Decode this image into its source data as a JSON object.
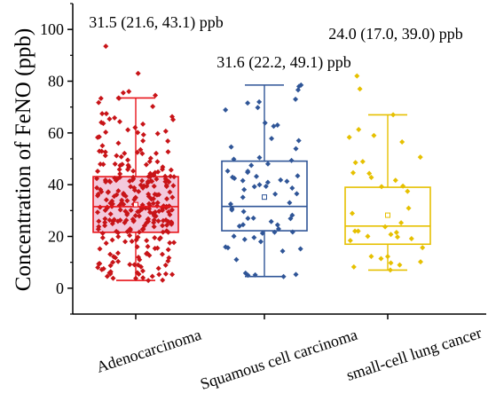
{
  "chart_data": {
    "type": "box",
    "title": "",
    "ylabel": "Concentration of FeNO (ppb)",
    "xlabel": "",
    "ylim": [
      -10,
      110
    ],
    "yticks": [
      0,
      20,
      40,
      60,
      80,
      100
    ],
    "grid": false,
    "categories": [
      "Adenocarcinoma",
      "Squamous cell carcinoma",
      "small-cell lung cancer"
    ],
    "series": [
      {
        "color": "#e8141a",
        "box_fill": "#f3c9dc",
        "point_color": "#c81418",
        "summary": "31.5 (21.6, 43.1) ppb",
        "median": 31.5,
        "q1": 21.6,
        "q3": 43.1,
        "mean": 32.3,
        "whisker_low": 3,
        "whisker_high": 73.5,
        "n_points": 300,
        "extra_points": [
          93.5,
          83,
          76,
          75.5,
          74.5,
          73.5,
          3,
          4
        ]
      },
      {
        "color": "#2f5597",
        "box_fill": "#ffffff",
        "point_color": "#2f5597",
        "summary": "31.6 (22.2, 49.1) ppb",
        "median": 31.6,
        "q1": 22.2,
        "q3": 49.1,
        "mean": 35.2,
        "whisker_low": 4.5,
        "whisker_high": 78.5,
        "n_points": 70,
        "extra_points": [
          78.5,
          78,
          73,
          72,
          5,
          4.5
        ]
      },
      {
        "color": "#e6c000",
        "box_fill": "#ffffff",
        "point_color": "#e6c000",
        "summary": "24.0 (17.0, 39.0) ppb",
        "median": 24.0,
        "q1": 17.0,
        "q3": 39.0,
        "mean": 28.2,
        "whisker_low": 7,
        "whisker_high": 67,
        "n_points": 38,
        "extra_points": [
          82,
          77,
          67,
          7,
          9
        ]
      }
    ]
  }
}
